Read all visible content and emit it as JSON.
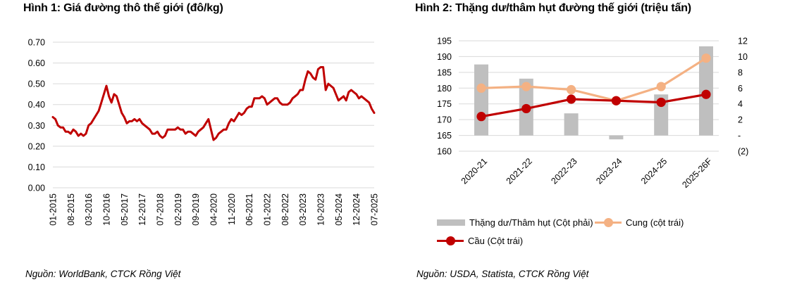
{
  "figure1": {
    "title": "Hình 1: Giá đường thô thế giới (đô/kg)",
    "source": "Nguồn: WorldBank, CTCK Rồng Việt"
  },
  "figure2": {
    "title": "Hình 2: Thặng dư/thâm hụt đường thế giới (triệu tấn)",
    "source": "Nguồn: USDA, Statista, CTCK Rồng Việt"
  },
  "colors": {
    "red": "#C00000",
    "orange": "#F4B183",
    "gray_bar": "#BFBFBF",
    "grid": "#D9D9D9",
    "text": "#000000"
  },
  "chart_data": [
    {
      "type": "line",
      "title": "Giá đường thô thế giới (đô/kg)",
      "unit": "đô/kg",
      "color": "#C00000",
      "ylim": [
        0,
        0.7
      ],
      "ytick_step": 0.1,
      "y_tick_labels": [
        "0.70",
        "0.60",
        "0.50",
        "0.40",
        "0.30",
        "0.20",
        "0.10",
        "0.00"
      ],
      "x_tick_labels": [
        "01-2015",
        "08-2015",
        "03-2016",
        "10-2016",
        "05-2017",
        "12-2017",
        "07-2018",
        "02-2019",
        "09-2019",
        "04-2020",
        "11-2020",
        "06-2021",
        "01-2022",
        "08-2022",
        "03-2023",
        "10-2023",
        "05-2024",
        "12-2024",
        "07-2025"
      ],
      "x_tick_every": 7,
      "x_frequency": "monthly from 01-2015 to 07-2025",
      "grid": true,
      "values": [
        0.34,
        0.33,
        0.3,
        0.29,
        0.29,
        0.27,
        0.27,
        0.26,
        0.28,
        0.27,
        0.25,
        0.26,
        0.25,
        0.26,
        0.3,
        0.31,
        0.33,
        0.35,
        0.37,
        0.41,
        0.45,
        0.49,
        0.44,
        0.41,
        0.45,
        0.44,
        0.4,
        0.36,
        0.34,
        0.31,
        0.32,
        0.32,
        0.33,
        0.32,
        0.33,
        0.31,
        0.3,
        0.29,
        0.28,
        0.26,
        0.26,
        0.27,
        0.25,
        0.24,
        0.25,
        0.28,
        0.28,
        0.28,
        0.28,
        0.29,
        0.28,
        0.28,
        0.26,
        0.27,
        0.27,
        0.26,
        0.25,
        0.27,
        0.28,
        0.29,
        0.31,
        0.33,
        0.28,
        0.23,
        0.24,
        0.26,
        0.27,
        0.28,
        0.28,
        0.31,
        0.33,
        0.32,
        0.34,
        0.36,
        0.35,
        0.36,
        0.38,
        0.39,
        0.39,
        0.43,
        0.43,
        0.43,
        0.44,
        0.43,
        0.4,
        0.41,
        0.42,
        0.43,
        0.43,
        0.41,
        0.4,
        0.4,
        0.4,
        0.41,
        0.43,
        0.44,
        0.45,
        0.47,
        0.47,
        0.52,
        0.56,
        0.55,
        0.53,
        0.52,
        0.57,
        0.58,
        0.58,
        0.47,
        0.5,
        0.49,
        0.48,
        0.45,
        0.42,
        0.43,
        0.44,
        0.42,
        0.46,
        0.47,
        0.46,
        0.45,
        0.43,
        0.44,
        0.43,
        0.42,
        0.41,
        0.38,
        0.36
      ]
    },
    {
      "type": "bar",
      "subtype": "combo-bar-line",
      "title": "Thặng dư/thâm hụt đường thế giới (triệu tấn)",
      "unit": "triệu tấn",
      "categories": [
        "2020-21",
        "2021-22",
        "2022-23",
        "2023-24",
        "2024-25",
        "2025-26F"
      ],
      "series": [
        {
          "name": "Thặng dư/Thâm hụt (Cột phải)",
          "type": "bar",
          "axis": "right",
          "color": "#BFBFBF",
          "values": [
            9.0,
            7.2,
            2.8,
            -0.5,
            5.2,
            11.3
          ]
        },
        {
          "name": "Cung (cột trái)",
          "type": "line",
          "axis": "left",
          "color": "#F4B183",
          "values": [
            180,
            180.5,
            179.5,
            176,
            180.5,
            189.5
          ]
        },
        {
          "name": "Cầu (Cột trái)",
          "type": "line",
          "axis": "left",
          "color": "#C00000",
          "values": [
            171,
            173.5,
            176.5,
            176,
            175.5,
            178
          ]
        }
      ],
      "left_axis": {
        "min": 160,
        "max": 195,
        "step": 5,
        "labels": [
          "195",
          "190",
          "185",
          "180",
          "175",
          "170",
          "165",
          "160"
        ]
      },
      "right_axis": {
        "min": -2,
        "max": 12,
        "step": 2,
        "labels": [
          "12",
          "10",
          "8",
          "6",
          "4",
          "2",
          "-",
          "(2)"
        ]
      },
      "grid": true,
      "legend_position": "bottom"
    }
  ]
}
